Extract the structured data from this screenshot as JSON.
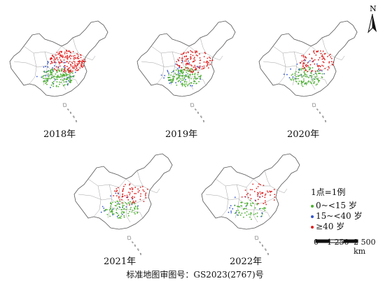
{
  "panels": [
    {
      "year_label": "2018年",
      "density": {
        "red": 180,
        "green": 150,
        "blue": 40
      }
    },
    {
      "year_label": "2019年",
      "density": {
        "red": 120,
        "green": 150,
        "blue": 35
      }
    },
    {
      "year_label": "2020年",
      "density": {
        "red": 90,
        "green": 110,
        "blue": 25
      }
    },
    {
      "year_label": "2021年",
      "density": {
        "red": 70,
        "green": 90,
        "blue": 20
      }
    },
    {
      "year_label": "2022年",
      "density": {
        "red": 50,
        "green": 60,
        "blue": 18
      }
    }
  ],
  "legend": {
    "title": "1点=1例",
    "items": [
      {
        "label": "0~<15 岁",
        "color": "#4caf30"
      },
      {
        "label": "15~<40 岁",
        "color": "#3355cc"
      },
      {
        "label": "≥40 岁",
        "color": "#e02020"
      }
    ]
  },
  "north_label": "N",
  "scale": {
    "labels": [
      "0",
      "1 250",
      "2 500 km"
    ]
  },
  "caption": "标准地图审图号：GS2023(2767)号",
  "colors": {
    "outline": "#555555",
    "province": "#888888",
    "red": "#e02020",
    "green": "#4caf30",
    "blue": "#3355cc"
  }
}
